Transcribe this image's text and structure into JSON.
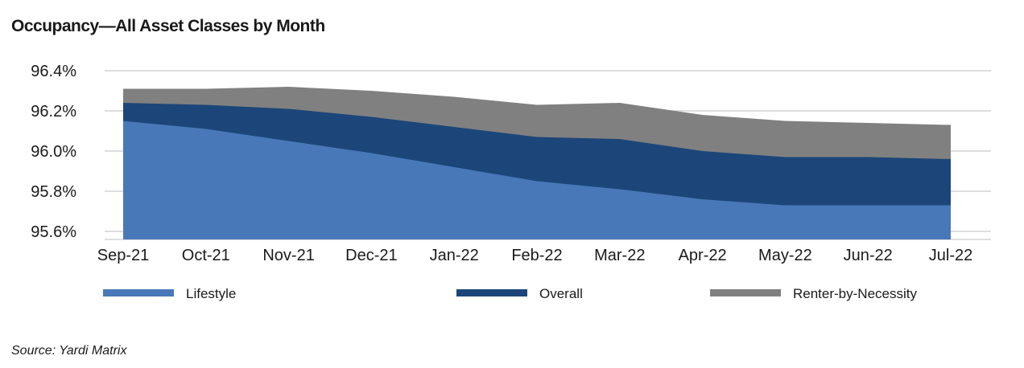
{
  "chart_data": {
    "type": "area",
    "title": "Occupancy—All Asset Classes by Month",
    "source": "Source: Yardi Matrix",
    "categories": [
      "Sep-21",
      "Oct-21",
      "Nov-21",
      "Dec-21",
      "Jan-22",
      "Feb-22",
      "Mar-22",
      "Apr-22",
      "May-22",
      "Jun-22",
      "Jul-22"
    ],
    "y_ticks": [
      "96.4%",
      "96.2%",
      "96.0%",
      "95.8%",
      "95.6%"
    ],
    "ylim": [
      95.56,
      96.42
    ],
    "grid": true,
    "legend_position": "bottom",
    "series": [
      {
        "name": "Renter-by-Necessity",
        "color": "#808080",
        "values": [
          96.31,
          96.31,
          96.32,
          96.3,
          96.27,
          96.23,
          96.24,
          96.18,
          96.15,
          96.14,
          96.13
        ]
      },
      {
        "name": "Overall",
        "color": "#1c4679",
        "values": [
          96.24,
          96.23,
          96.21,
          96.17,
          96.12,
          96.07,
          96.06,
          96.0,
          95.97,
          95.97,
          95.96
        ]
      },
      {
        "name": "Lifestyle",
        "color": "#4878b8",
        "values": [
          96.15,
          96.11,
          96.05,
          95.99,
          95.92,
          95.85,
          95.81,
          95.76,
          95.73,
          95.73,
          95.73
        ]
      }
    ],
    "legend": [
      {
        "name": "Lifestyle",
        "color": "#4878b8"
      },
      {
        "name": "Overall",
        "color": "#1c4679"
      },
      {
        "name": "Renter-by-Necessity",
        "color": "#808080"
      }
    ]
  }
}
